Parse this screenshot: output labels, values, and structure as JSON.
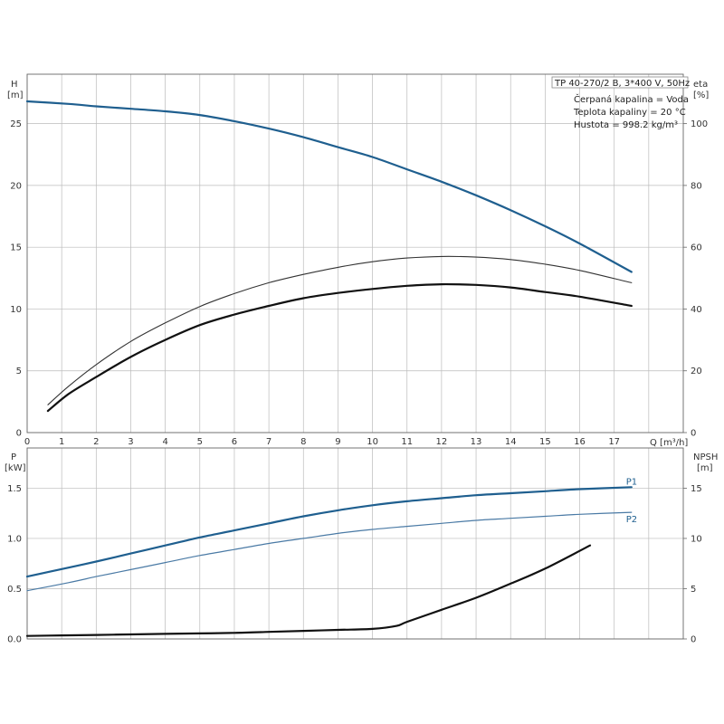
{
  "info": {
    "model": "TP 40-270/2 B, 3*400 V, 50Hz",
    "lines": [
      "Čerpaná kapalina = Voda",
      "Teplota kapaliny = 20 °C",
      "Hustota = 998.2 kg/m³"
    ]
  },
  "colors": {
    "grid": "#bbbbbb",
    "axis": "#666666",
    "blue": "#1f5f8f",
    "blue_light": "#4a7aa5",
    "black": "#111111"
  },
  "chart_data": [
    {
      "type": "line",
      "x_label": "Q [m³/h]",
      "xlim": [
        0,
        19
      ],
      "x_ticks": [
        0,
        1,
        2,
        3,
        4,
        5,
        6,
        7,
        8,
        9,
        10,
        11,
        12,
        13,
        14,
        15,
        16,
        17
      ],
      "y_left": {
        "label_top": "H",
        "label_unit": "[m]",
        "lim": [
          0,
          29
        ],
        "ticks": [
          0,
          5,
          10,
          15,
          20,
          25
        ]
      },
      "y_right": {
        "label_top": "eta",
        "label_unit": "[%]",
        "lim": [
          0,
          116
        ],
        "ticks": [
          0,
          20,
          40,
          60,
          80,
          100
        ]
      },
      "series": [
        {
          "name": "",
          "axis": "left",
          "style": "blue-thick",
          "x": [
            0,
            1.2,
            2,
            3,
            4,
            5,
            6,
            7,
            8,
            9,
            10,
            11,
            12,
            13,
            14,
            15,
            16,
            17.5
          ],
          "y": [
            26.8,
            26.6,
            26.4,
            26.2,
            26.0,
            25.7,
            25.2,
            24.6,
            23.9,
            23.1,
            22.3,
            21.3,
            20.3,
            19.2,
            18.0,
            16.7,
            15.3,
            13.0
          ]
        },
        {
          "name": "",
          "axis": "right",
          "style": "gray-thin",
          "x": [
            0.6,
            1.2,
            2,
            3,
            4,
            5,
            6,
            7,
            8,
            9,
            10,
            11,
            12,
            13,
            14,
            15,
            16,
            17.5
          ],
          "y": [
            9,
            15,
            22,
            29.5,
            35.5,
            40.8,
            45,
            48.5,
            51.2,
            53.5,
            55.3,
            56.5,
            57,
            56.8,
            56,
            54.5,
            52.5,
            48.5
          ]
        },
        {
          "name": "",
          "axis": "right",
          "style": "black-thick",
          "x": [
            0.6,
            1.2,
            2,
            3,
            4,
            5,
            6,
            7,
            8,
            9,
            10,
            11,
            12,
            13,
            14,
            15,
            16,
            17.5
          ],
          "y": [
            7,
            12.5,
            18,
            24.5,
            30,
            34.8,
            38.2,
            41,
            43.5,
            45.2,
            46.5,
            47.5,
            48,
            47.8,
            47,
            45.5,
            44,
            41
          ]
        }
      ]
    },
    {
      "type": "line",
      "x_label": "",
      "xlim": [
        0,
        19
      ],
      "y_left": {
        "label_top": "P",
        "label_unit": "[kW]",
        "lim": [
          0,
          1.9
        ],
        "ticks": [
          0.0,
          0.5,
          1.0,
          1.5
        ],
        "tick_labels": [
          "0.0",
          "0.5",
          "1.0",
          "1.5"
        ]
      },
      "y_right": {
        "label_top": "NPSH",
        "label_unit": "[m]",
        "lim": [
          0,
          19
        ],
        "ticks": [
          0,
          5,
          10,
          15
        ]
      },
      "series": [
        {
          "name": "P1",
          "axis": "left",
          "style": "blue-thick",
          "x": [
            0,
            1.2,
            2,
            3,
            4,
            5,
            6,
            7,
            8,
            9,
            10,
            11,
            12,
            13,
            14,
            15,
            16,
            17.5
          ],
          "y": [
            0.62,
            0.71,
            0.77,
            0.85,
            0.93,
            1.01,
            1.08,
            1.15,
            1.22,
            1.28,
            1.33,
            1.37,
            1.4,
            1.43,
            1.45,
            1.47,
            1.49,
            1.51
          ]
        },
        {
          "name": "P2",
          "axis": "left",
          "style": "blue-thin",
          "x": [
            0,
            1.2,
            2,
            3,
            4,
            5,
            6,
            7,
            8,
            9,
            10,
            11,
            12,
            13,
            14,
            15,
            16,
            17.5
          ],
          "y": [
            0.48,
            0.56,
            0.62,
            0.69,
            0.76,
            0.83,
            0.89,
            0.95,
            1.0,
            1.05,
            1.09,
            1.12,
            1.15,
            1.18,
            1.2,
            1.22,
            1.24,
            1.26
          ]
        },
        {
          "name": "",
          "axis": "right",
          "style": "black-thick",
          "x": [
            0,
            1,
            2,
            3,
            4,
            5,
            6,
            7,
            8,
            9,
            10,
            10.7,
            11,
            12,
            13,
            14,
            15,
            16.3
          ],
          "y": [
            0.3,
            0.35,
            0.4,
            0.45,
            0.5,
            0.55,
            0.6,
            0.7,
            0.8,
            0.9,
            1.0,
            1.3,
            1.7,
            2.9,
            4.1,
            5.5,
            7.0,
            9.3
          ]
        }
      ]
    }
  ]
}
